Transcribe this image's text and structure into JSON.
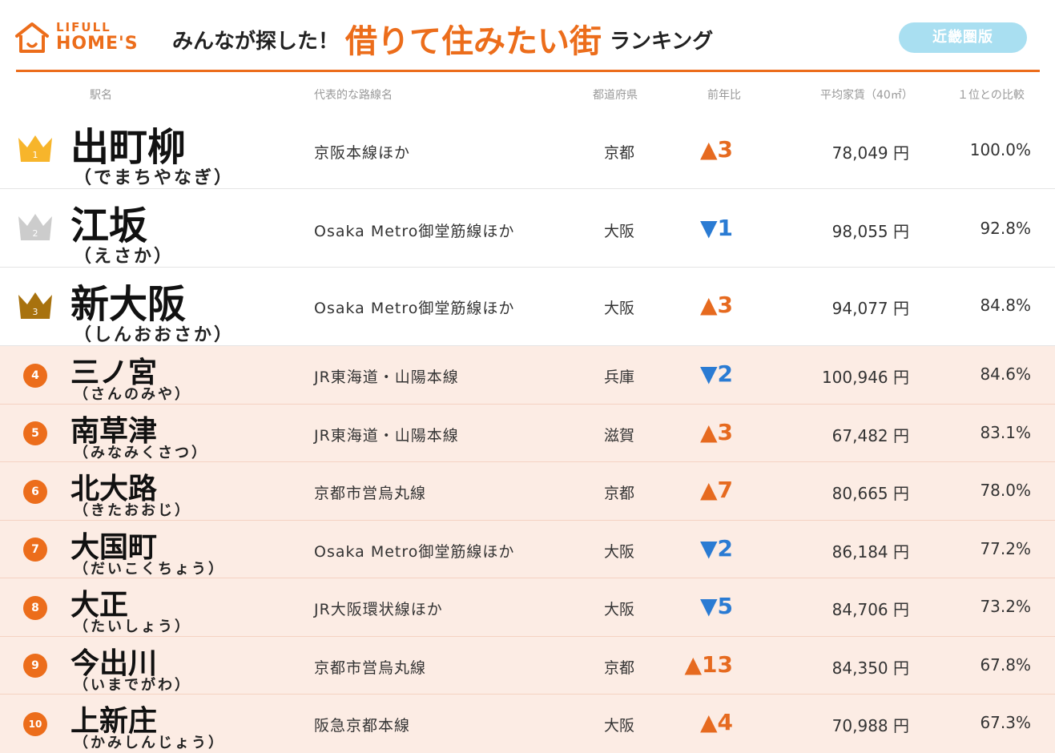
{
  "header": {
    "logo_line1": "LIFULL",
    "logo_line2": "HOME'S",
    "headline_pre": "みんなが探した！",
    "headline_main": "借りて住みたい街",
    "headline_post": "ランキング",
    "region_badge": "近畿圏版",
    "accent_color": "#ec6d1b",
    "badge_color": "#a9dff1"
  },
  "columns": {
    "station": "駅名",
    "line": "代表的な路線名",
    "prefecture": "都道府県",
    "change": "前年比",
    "rent": "平均家賃（40㎡）",
    "ratio": "１位との比較"
  },
  "colors": {
    "up": "#e66a1f",
    "down": "#2a7bd3",
    "gold": "#f7b52b",
    "silver": "#cccccc",
    "bronze": "#a8720e",
    "lower_row_bg": "#fcece4"
  },
  "rows": [
    {
      "rank": "1",
      "icon": "crown-gold-icon",
      "name": "出町柳",
      "reading": "（でまちやなぎ）",
      "line": "京阪本線ほか",
      "pref": "京都",
      "change": "▲3",
      "dir": "up",
      "rent": "78,049 円",
      "ratio": "100.0%"
    },
    {
      "rank": "2",
      "icon": "crown-silver-icon",
      "name": "江坂",
      "reading": "（えさか）",
      "line": "Osaka Metro御堂筋線ほか",
      "pref": "大阪",
      "change": "▼1",
      "dir": "down",
      "rent": "98,055 円",
      "ratio": "92.8%"
    },
    {
      "rank": "3",
      "icon": "crown-bronze-icon",
      "name": "新大阪",
      "reading": "（しんおおさか）",
      "line": "Osaka Metro御堂筋線ほか",
      "pref": "大阪",
      "change": "▲3",
      "dir": "up",
      "rent": "94,077 円",
      "ratio": "84.8%"
    },
    {
      "rank": "4",
      "icon": "rank-circle-icon",
      "name": "三ノ宮",
      "reading": "（さんのみや）",
      "line": "JR東海道・山陽本線",
      "pref": "兵庫",
      "change": "▼2",
      "dir": "down",
      "rent": "100,946 円",
      "ratio": "84.6%"
    },
    {
      "rank": "5",
      "icon": "rank-circle-icon",
      "name": "南草津",
      "reading": "（みなみくさつ）",
      "line": "JR東海道・山陽本線",
      "pref": "滋賀",
      "change": "▲3",
      "dir": "up",
      "rent": "67,482 円",
      "ratio": "83.1%"
    },
    {
      "rank": "6",
      "icon": "rank-circle-icon",
      "name": "北大路",
      "reading": "（きたおおじ）",
      "line": "京都市営烏丸線",
      "pref": "京都",
      "change": "▲7",
      "dir": "up",
      "rent": "80,665 円",
      "ratio": "78.0%"
    },
    {
      "rank": "7",
      "icon": "rank-circle-icon",
      "name": "大国町",
      "reading": "（だいこくちょう）",
      "line": "Osaka Metro御堂筋線ほか",
      "pref": "大阪",
      "change": "▼2",
      "dir": "down",
      "rent": "86,184 円",
      "ratio": "77.2%"
    },
    {
      "rank": "8",
      "icon": "rank-circle-icon",
      "name": "大正",
      "reading": "（たいしょう）",
      "line": "JR大阪環状線ほか",
      "pref": "大阪",
      "change": "▼5",
      "dir": "down",
      "rent": "84,706 円",
      "ratio": "73.2%"
    },
    {
      "rank": "9",
      "icon": "rank-circle-icon",
      "name": "今出川",
      "reading": "（いまでがわ）",
      "line": "京都市営烏丸線",
      "pref": "京都",
      "change": "▲13",
      "dir": "up",
      "rent": "84,350 円",
      "ratio": "67.8%"
    },
    {
      "rank": "10",
      "icon": "rank-circle-icon",
      "name": "上新庄",
      "reading": "（かみしんじょう）",
      "line": "阪急京都本線",
      "pref": "大阪",
      "change": "▲4",
      "dir": "up",
      "rent": "70,988 円",
      "ratio": "67.3%"
    }
  ]
}
